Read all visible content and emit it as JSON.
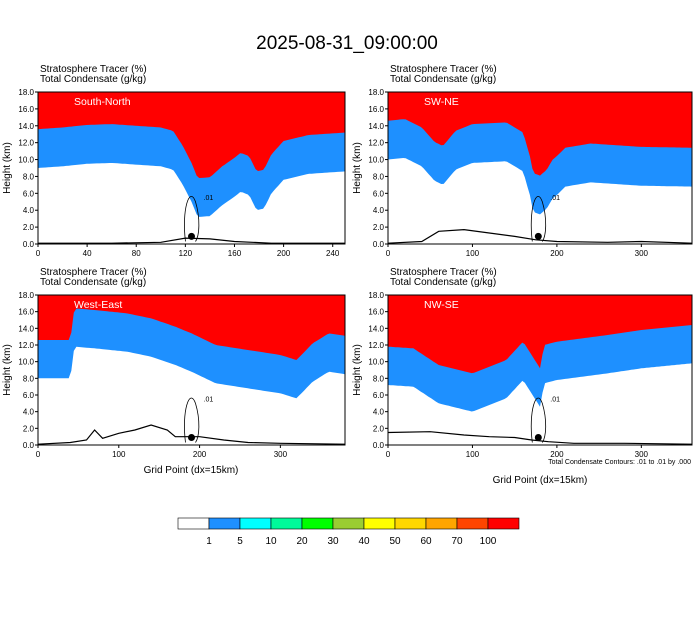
{
  "figure": {
    "title": "2025-08-31_09:00:00",
    "field_main": "Stratosphere Tracer",
    "field_main_unit": "(%)",
    "field_contour": "Total Condensate",
    "field_contour_unit": "(g/kg)",
    "ylabel": "Height (km)",
    "xlabel": "Grid Point (dx=15km)",
    "footnote": "Total Condensate Contours: .01 to .01 by .000",
    "contour_label": ".01"
  },
  "colorbar": {
    "levels": [
      "1",
      "5",
      "10",
      "20",
      "30",
      "40",
      "50",
      "60",
      "70",
      "100"
    ],
    "colors": [
      "#ffffff",
      "#1e90ff",
      "#00ffff",
      "#00fa9a",
      "#00ff00",
      "#9acd32",
      "#ffff00",
      "#ffd700",
      "#ffa500",
      "#ff4500",
      "#ff0000"
    ]
  },
  "chart_data": [
    {
      "type": "heatmap",
      "panel": "South-North",
      "xlim": [
        0,
        250
      ],
      "ylim": [
        0,
        18
      ],
      "xticks": [
        "0",
        "40",
        "80",
        "120",
        "160",
        "200",
        "240"
      ],
      "yticks": [
        "0.0",
        "2.0",
        "4.0",
        "6.0",
        "8.0",
        "10.0",
        "12.0",
        "14.0",
        "16.0",
        "18.0"
      ],
      "marker_x": 125,
      "tropopause": [
        [
          0,
          13.0
        ],
        [
          20,
          13.2
        ],
        [
          40,
          13.5
        ],
        [
          60,
          13.6
        ],
        [
          80,
          13.4
        ],
        [
          100,
          13.2
        ],
        [
          110,
          12.8
        ],
        [
          118,
          11.0
        ],
        [
          125,
          9.0
        ],
        [
          130,
          7.2
        ],
        [
          140,
          7.3
        ],
        [
          150,
          8.6
        ],
        [
          160,
          9.6
        ],
        [
          165,
          10.2
        ],
        [
          172,
          9.8
        ],
        [
          178,
          8.0
        ],
        [
          184,
          8.2
        ],
        [
          190,
          10.0
        ],
        [
          200,
          11.6
        ],
        [
          220,
          12.3
        ],
        [
          250,
          12.6
        ]
      ],
      "terrain": [
        [
          0,
          0.1
        ],
        [
          60,
          0.1
        ],
        [
          100,
          0.2
        ],
        [
          120,
          0.7
        ],
        [
          140,
          0.6
        ],
        [
          160,
          0.3
        ],
        [
          190,
          0.1
        ],
        [
          250,
          0.1
        ]
      ]
    },
    {
      "type": "heatmap",
      "panel": "SW-NE",
      "xlim": [
        0,
        360
      ],
      "ylim": [
        0,
        18
      ],
      "xticks": [
        "0",
        "100",
        "200",
        "300"
      ],
      "yticks": [
        "0.0",
        "2.0",
        "4.0",
        "6.0",
        "8.0",
        "10.0",
        "12.0",
        "14.0",
        "16.0",
        "18.0"
      ],
      "marker_x": 178,
      "tropopause": [
        [
          0,
          14.0
        ],
        [
          20,
          14.2
        ],
        [
          40,
          13.2
        ],
        [
          55,
          11.5
        ],
        [
          65,
          11.0
        ],
        [
          80,
          12.8
        ],
        [
          100,
          13.6
        ],
        [
          140,
          13.8
        ],
        [
          160,
          12.6
        ],
        [
          168,
          9.8
        ],
        [
          172,
          7.8
        ],
        [
          180,
          7.5
        ],
        [
          188,
          8.2
        ],
        [
          195,
          9.4
        ],
        [
          200,
          9.8
        ],
        [
          210,
          10.8
        ],
        [
          240,
          11.3
        ],
        [
          300,
          10.9
        ],
        [
          360,
          10.8
        ]
      ],
      "terrain": [
        [
          0,
          0.1
        ],
        [
          40,
          0.3
        ],
        [
          60,
          1.5
        ],
        [
          90,
          1.7
        ],
        [
          120,
          1.3
        ],
        [
          150,
          0.9
        ],
        [
          175,
          0.5
        ],
        [
          200,
          0.3
        ],
        [
          260,
          0.2
        ],
        [
          300,
          0.3
        ],
        [
          360,
          0.1
        ]
      ]
    },
    {
      "type": "heatmap",
      "panel": "West-East",
      "xlim": [
        0,
        380
      ],
      "ylim": [
        0,
        18
      ],
      "xticks": [
        "0",
        "100",
        "200",
        "300"
      ],
      "yticks": [
        "0.0",
        "2.0",
        "4.0",
        "6.0",
        "8.0",
        "10.0",
        "12.0",
        "14.0",
        "16.0",
        "18.0"
      ],
      "marker_x": 190,
      "tropopause": [
        [
          0,
          12.0
        ],
        [
          40,
          12.0
        ],
        [
          45,
          15.8
        ],
        [
          70,
          15.6
        ],
        [
          110,
          15.2
        ],
        [
          140,
          14.6
        ],
        [
          170,
          13.6
        ],
        [
          190,
          12.8
        ],
        [
          220,
          11.4
        ],
        [
          260,
          10.8
        ],
        [
          300,
          10.2
        ],
        [
          320,
          9.6
        ],
        [
          340,
          11.6
        ],
        [
          360,
          12.8
        ],
        [
          380,
          12.5
        ]
      ],
      "terrain": [
        [
          0,
          0.1
        ],
        [
          40,
          0.3
        ],
        [
          60,
          0.6
        ],
        [
          70,
          1.8
        ],
        [
          80,
          0.8
        ],
        [
          100,
          1.4
        ],
        [
          120,
          1.8
        ],
        [
          140,
          2.4
        ],
        [
          160,
          1.8
        ],
        [
          170,
          1.0
        ],
        [
          200,
          1.0
        ],
        [
          230,
          0.6
        ],
        [
          260,
          0.3
        ],
        [
          300,
          0.2
        ],
        [
          380,
          0.1
        ]
      ]
    },
    {
      "type": "heatmap",
      "panel": "NW-SE",
      "xlim": [
        0,
        360
      ],
      "ylim": [
        0,
        18
      ],
      "xticks": [
        "0",
        "100",
        "200",
        "300"
      ],
      "yticks": [
        "0.0",
        "2.0",
        "4.0",
        "6.0",
        "8.0",
        "10.0",
        "12.0",
        "14.0",
        "16.0",
        "18.0"
      ],
      "marker_x": 178,
      "tropopause": [
        [
          0,
          11.2
        ],
        [
          30,
          11.0
        ],
        [
          60,
          9.0
        ],
        [
          100,
          8.0
        ],
        [
          120,
          8.8
        ],
        [
          140,
          9.6
        ],
        [
          160,
          11.8
        ],
        [
          170,
          10.2
        ],
        [
          180,
          8.6
        ],
        [
          185,
          11.4
        ],
        [
          200,
          11.8
        ],
        [
          230,
          12.2
        ],
        [
          260,
          12.6
        ],
        [
          300,
          13.2
        ],
        [
          340,
          13.6
        ],
        [
          360,
          13.8
        ]
      ],
      "terrain": [
        [
          0,
          1.5
        ],
        [
          50,
          1.6
        ],
        [
          90,
          1.2
        ],
        [
          120,
          1.0
        ],
        [
          150,
          0.9
        ],
        [
          170,
          0.6
        ],
        [
          190,
          0.4
        ],
        [
          220,
          0.2
        ],
        [
          280,
          0.2
        ],
        [
          360,
          0.1
        ]
      ]
    }
  ]
}
